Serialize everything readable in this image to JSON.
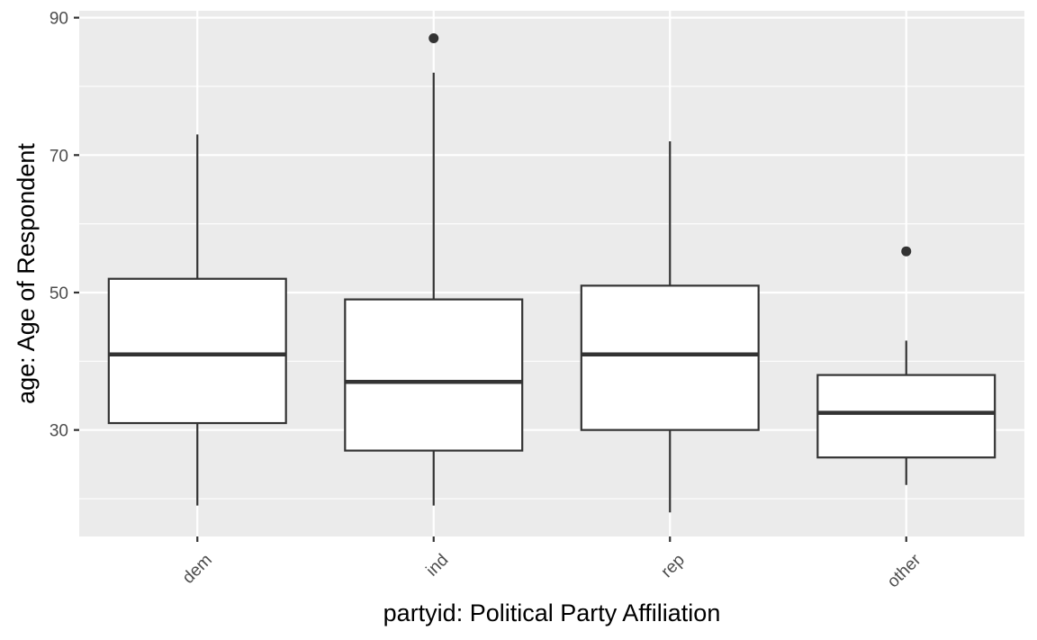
{
  "chart_data": {
    "type": "boxplot",
    "xlabel": "partyid: Political Party Affiliation",
    "ylabel": "age: Age of Respondent",
    "ylim": [
      14.5,
      91
    ],
    "y_major_ticks": [
      30,
      50,
      70,
      90
    ],
    "y_minor_ticks": [
      20,
      40,
      60,
      80
    ],
    "grid": true,
    "categories": [
      "dem",
      "ind",
      "rep",
      "other"
    ],
    "boxes": [
      {
        "category": "dem",
        "whisker_low": 19,
        "q1": 31,
        "median": 41,
        "q3": 52,
        "whisker_high": 73,
        "outliers": []
      },
      {
        "category": "ind",
        "whisker_low": 19,
        "q1": 27,
        "median": 37,
        "q3": 49,
        "whisker_high": 82,
        "outliers": [
          87
        ]
      },
      {
        "category": "rep",
        "whisker_low": 18,
        "q1": 30,
        "median": 41,
        "q3": 51,
        "whisker_high": 72,
        "outliers": []
      },
      {
        "category": "other",
        "whisker_low": 22,
        "q1": 26,
        "median": 32.5,
        "q3": 38,
        "whisker_high": 43,
        "outliers": [
          56
        ]
      }
    ],
    "colors": {
      "panel_background": "#ebebeb",
      "grid": "#ffffff",
      "box_fill": "#ffffff",
      "box_line": "#333333",
      "tick_text": "#4d4d4d",
      "axis_title": "#000000"
    }
  }
}
